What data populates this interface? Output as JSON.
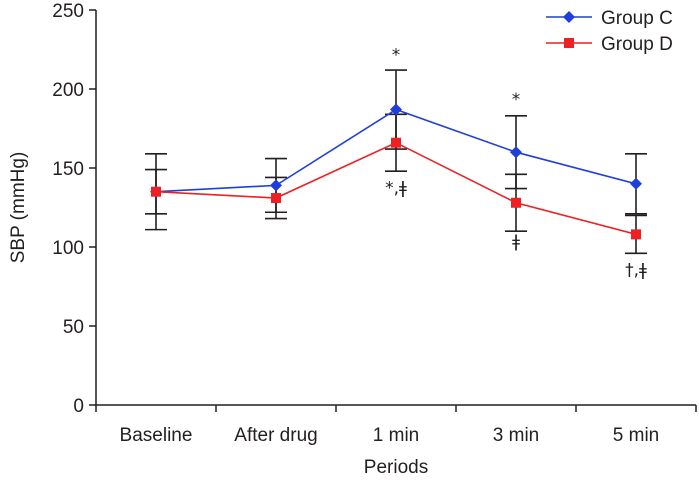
{
  "chart_data": {
    "type": "line",
    "title": "",
    "xlabel": "Periods",
    "ylabel": "SBP (mmHg)",
    "categories": [
      "Baseline",
      "After drug",
      "1 min",
      "3 min",
      "5 min"
    ],
    "ylim": [
      0,
      250
    ],
    "yticks": [
      0,
      50,
      100,
      150,
      200,
      250
    ],
    "grid": false,
    "legend_position": "top-right",
    "series": [
      {
        "name": "Group C",
        "color": "#1f3fdc",
        "marker": "diamond",
        "values": [
          135,
          139,
          187,
          160,
          140
        ],
        "error": [
          24,
          17,
          25,
          23,
          19
        ]
      },
      {
        "name": "Group D",
        "color": "#ee2024",
        "marker": "square",
        "values": [
          135,
          131,
          166,
          128,
          108
        ],
        "error": [
          14,
          13,
          18,
          18,
          12
        ]
      }
    ],
    "annotations": [
      {
        "category_index": 2,
        "value": 218,
        "text": "*"
      },
      {
        "category_index": 2,
        "value": 134,
        "text": "*,ǂ"
      },
      {
        "category_index": 3,
        "value": 190,
        "text": "*"
      },
      {
        "category_index": 3,
        "value": 100,
        "text": "ǂ"
      },
      {
        "category_index": 4,
        "value": 82,
        "text": "†,ǂ"
      }
    ]
  }
}
